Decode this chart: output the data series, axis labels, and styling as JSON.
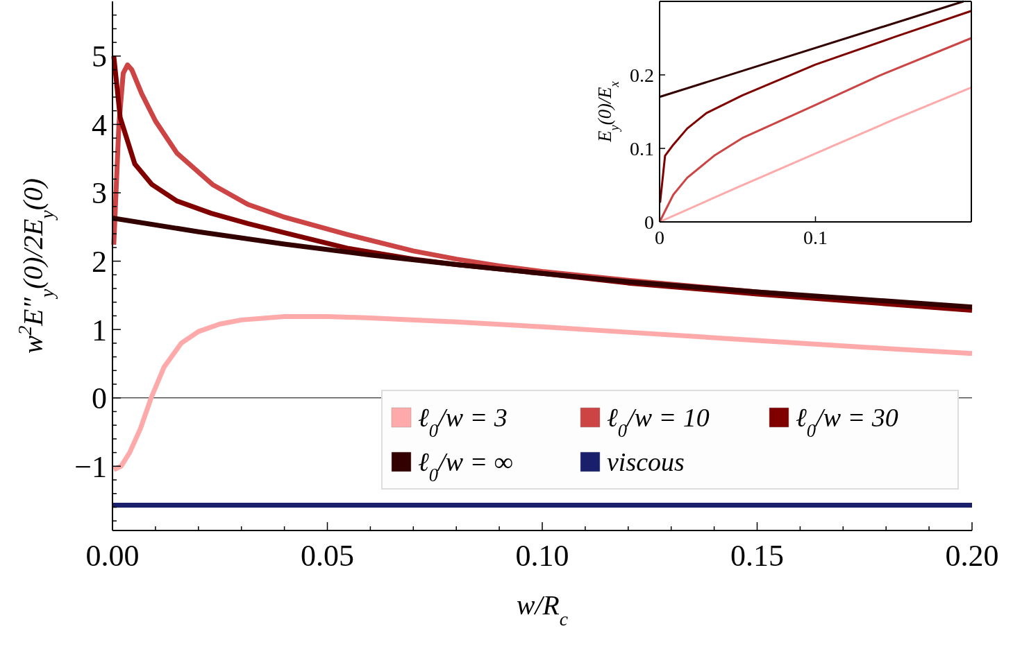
{
  "chart_data": [
    {
      "type": "line",
      "xlabel": "w/R$_{c}$",
      "ylabel": "w$^{2}$E″$_{y}$(0)/2E$_{y}$(0)",
      "xlim": [
        0,
        0.2
      ],
      "ylim": [
        -1.94,
        5.8
      ],
      "xticks": [
        {
          "value": 0,
          "label": "0.00"
        },
        {
          "value": 0.01,
          "label": null
        },
        {
          "value": 0.02,
          "label": null
        },
        {
          "value": 0.03,
          "label": null
        },
        {
          "value": 0.04,
          "label": null
        },
        {
          "value": 0.05,
          "label": "0.05"
        },
        {
          "value": 0.06,
          "label": null
        },
        {
          "value": 0.07,
          "label": null
        },
        {
          "value": 0.08,
          "label": null
        },
        {
          "value": 0.09,
          "label": null
        },
        {
          "value": 0.1,
          "label": "0.10"
        },
        {
          "value": 0.11,
          "label": null
        },
        {
          "value": 0.12,
          "label": null
        },
        {
          "value": 0.13,
          "label": null
        },
        {
          "value": 0.14,
          "label": null
        },
        {
          "value": 0.15,
          "label": "0.15"
        },
        {
          "value": 0.16,
          "label": null
        },
        {
          "value": 0.17,
          "label": null
        },
        {
          "value": 0.18,
          "label": null
        },
        {
          "value": 0.19,
          "label": null
        },
        {
          "value": 0.2,
          "label": "0.20"
        }
      ],
      "yticks": [
        {
          "value": -1.8,
          "label": null
        },
        {
          "value": -1.6,
          "label": null
        },
        {
          "value": -1.4,
          "label": null
        },
        {
          "value": -1.2,
          "label": null
        },
        {
          "value": -1,
          "label": "−1"
        },
        {
          "value": -0.8,
          "label": null
        },
        {
          "value": -0.6,
          "label": null
        },
        {
          "value": -0.4,
          "label": null
        },
        {
          "value": -0.2,
          "label": null
        },
        0,
        {
          "value": 0.2,
          "label": null
        },
        {
          "value": 0.4,
          "label": null
        },
        {
          "value": 0.6,
          "label": null
        },
        {
          "value": 0.8,
          "label": null
        },
        1,
        {
          "value": 1.2,
          "label": null
        },
        {
          "value": 1.4,
          "label": null
        },
        {
          "value": 1.6,
          "label": null
        },
        {
          "value": 1.8,
          "label": null
        },
        2,
        {
          "value": 2.2,
          "label": null
        },
        {
          "value": 2.4,
          "label": null
        },
        {
          "value": 2.6,
          "label": null
        },
        {
          "value": 2.8,
          "label": null
        },
        3,
        {
          "value": 3.2,
          "label": null
        },
        {
          "value": 3.4,
          "label": null
        },
        {
          "value": 3.6,
          "label": null
        },
        {
          "value": 3.8,
          "label": null
        },
        4,
        {
          "value": 4.2,
          "label": null
        },
        {
          "value": 4.4,
          "label": null
        },
        {
          "value": 4.6,
          "label": null
        },
        {
          "value": 4.8,
          "label": null
        },
        5,
        {
          "value": 5.2,
          "label": null
        },
        {
          "value": 5.4,
          "label": null
        },
        {
          "value": 5.6,
          "label": null
        }
      ],
      "grid": false,
      "legend": "bottom right",
      "marker": "none",
      "line_style": "solid",
      "ref_lines": [
        {
          "axis": "y",
          "value": 0,
          "color": "#000000"
        }
      ],
      "series": [
        {
          "name": "ℓ$_{0}$/w = 3",
          "color": "#ffaaaa",
          "x": [
            0.0003,
            0.002,
            0.004,
            0.0065,
            0.009,
            0.012,
            0.016,
            0.02,
            0.025,
            0.03,
            0.04,
            0.05,
            0.06,
            0.08,
            0.1,
            0.12,
            0.15,
            0.175,
            0.2
          ],
          "values": [
            -1.05,
            -1.0,
            -0.8,
            -0.45,
            0,
            0.45,
            0.8,
            0.97,
            1.08,
            1.14,
            1.19,
            1.19,
            1.17,
            1.11,
            1.04,
            0.96,
            0.84,
            0.74,
            0.65
          ]
        },
        {
          "name": "ℓ$_{0}$/w = 10",
          "color": "#cc4444",
          "x": [
            0.0003,
            0.0015,
            0.0025,
            0.0035,
            0.0045,
            0.0068,
            0.01,
            0.015,
            0.0233,
            0.0315,
            0.0397,
            0.0546,
            0.07,
            0.08,
            0.09,
            0.1,
            0.12,
            0.15,
            0.175,
            0.2
          ],
          "values": [
            2.24,
            4.0,
            4.75,
            4.87,
            4.8,
            4.45,
            4.05,
            3.58,
            3.12,
            2.83,
            2.65,
            2.39,
            2.15,
            2.03,
            1.93,
            1.85,
            1.72,
            1.55,
            1.42,
            1.31
          ]
        },
        {
          "name": "ℓ$_{0}$/w = 30",
          "color": "#800000",
          "x": [
            0.0003,
            0.0018,
            0.0052,
            0.0092,
            0.015,
            0.023,
            0.0315,
            0.0397,
            0.0546,
            0.07,
            0.08,
            0.1,
            0.12,
            0.15,
            0.2
          ],
          "values": [
            5.0,
            4.1,
            3.42,
            3.12,
            2.88,
            2.7,
            2.55,
            2.42,
            2.19,
            2.03,
            1.95,
            1.82,
            1.68,
            1.52,
            1.28
          ]
        },
        {
          "name": "ℓ$_{0}$/w = ∞",
          "color": "#330000",
          "x": [
            0,
            0.02,
            0.04,
            0.06,
            0.08,
            0.1,
            0.12,
            0.15,
            0.2
          ],
          "values": [
            2.63,
            2.43,
            2.25,
            2.09,
            1.95,
            1.82,
            1.7,
            1.55,
            1.33
          ]
        },
        {
          "name": "viscous",
          "color": "#1a1f6b",
          "x": [
            0,
            0.2
          ],
          "values": [
            -1.57,
            -1.57
          ]
        }
      ]
    },
    {
      "type": "line",
      "ylabel": "E$_{y}$(0)/E$_{x}$",
      "xlim": [
        0,
        0.2
      ],
      "ylim": [
        0,
        0.3
      ],
      "xticks": [
        0,
        0.1
      ],
      "yticks": [
        0,
        0.1,
        0.2
      ],
      "grid": false,
      "marker": "none",
      "line_style": "solid",
      "series": [
        {
          "color": "#ffaaaa",
          "x": [
            0,
            0.05,
            0.1,
            0.15,
            0.2
          ],
          "values": [
            0,
            0.047,
            0.093,
            0.139,
            0.183
          ]
        },
        {
          "color": "#cc4444",
          "x": [
            0,
            0.0088,
            0.0177,
            0.035,
            0.053,
            0.1,
            0.141,
            0.2
          ],
          "values": [
            0,
            0.037,
            0.06,
            0.09,
            0.114,
            0.159,
            0.199,
            0.25
          ]
        },
        {
          "color": "#800000",
          "x": [
            0.0003,
            0.0018,
            0.0035,
            0.0088,
            0.0177,
            0.03,
            0.053,
            0.1,
            0.15,
            0.2
          ],
          "values": [
            0.026,
            0.056,
            0.09,
            0.105,
            0.127,
            0.148,
            0.172,
            0.214,
            0.251,
            0.287
          ]
        },
        {
          "color": "#330000",
          "x": [
            0,
            0.195
          ],
          "values": [
            0.17,
            0.3
          ]
        }
      ]
    }
  ]
}
